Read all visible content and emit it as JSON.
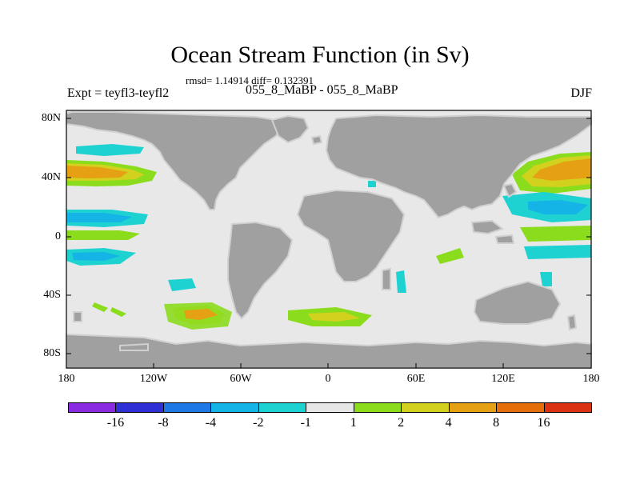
{
  "title": "Ocean Stream Function (in Sv)",
  "stats": "rmsd= 1.14914 diff= 0.132391",
  "experiment": "Expt = teyfl3-teyfl2",
  "period": "055_8_MaBP - 055_8_MaBP",
  "season": "DJF",
  "y_ticks": [
    "80N",
    "40N",
    "0",
    "40S",
    "80S"
  ],
  "x_ticks": [
    "180",
    "120W",
    "60W",
    "0",
    "60E",
    "120E",
    "180"
  ],
  "colorbar": {
    "colors": [
      "#8a2be2",
      "#2f2fd6",
      "#1e78e6",
      "#14b4e6",
      "#1ed2d2",
      "#e6e6e6",
      "#8cdc1e",
      "#d2d21e",
      "#e6a014",
      "#e66e0a",
      "#dc3214"
    ],
    "labels": [
      "-16",
      "-8",
      "-4",
      "-2",
      "-1",
      "1",
      "2",
      "4",
      "8",
      "16"
    ]
  },
  "colors": {
    "land": "#a0a0a0",
    "ocean": "#e8e8e8",
    "coast_halo": "#d0d0d0"
  }
}
